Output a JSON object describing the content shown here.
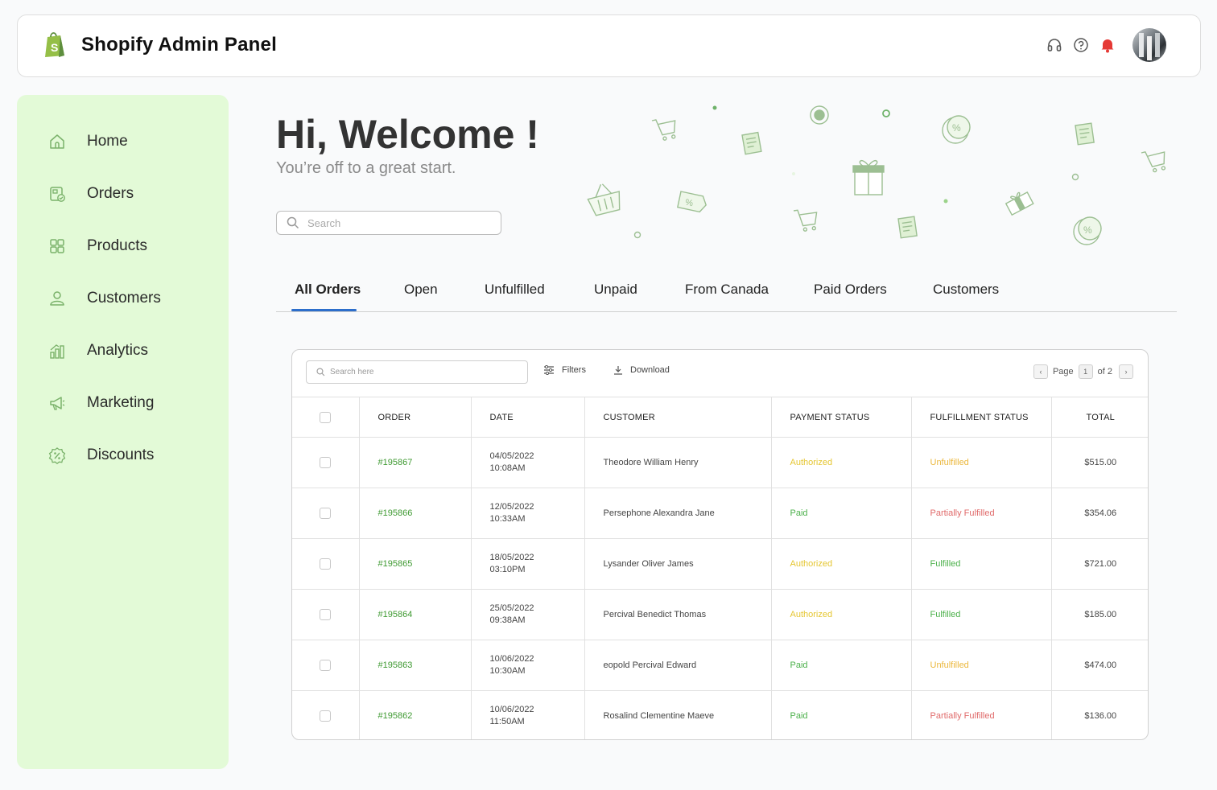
{
  "header": {
    "title": "Shopify Admin Panel",
    "icons": [
      "headset-icon",
      "help-icon",
      "bell-icon"
    ],
    "accent": "#95bf47",
    "bell_color": "#e53935"
  },
  "sidebar": {
    "background": "#e3fad7",
    "items": [
      {
        "label": "Home",
        "icon": "home-icon"
      },
      {
        "label": "Orders",
        "icon": "orders-icon"
      },
      {
        "label": "Products",
        "icon": "products-icon"
      },
      {
        "label": "Customers",
        "icon": "customers-icon"
      },
      {
        "label": "Analytics",
        "icon": "analytics-icon"
      },
      {
        "label": "Marketing",
        "icon": "megaphone-icon"
      },
      {
        "label": "Discounts",
        "icon": "discount-icon"
      }
    ]
  },
  "welcome": {
    "title": "Hi, Welcome !",
    "subtitle": "You’re off to a great start.",
    "search_placeholder": "Search"
  },
  "tabs": [
    "All Orders",
    "Open",
    "Unfulfilled",
    "Unpaid",
    "From Canada",
    "Paid Orders",
    "Customers"
  ],
  "active_tab": "All Orders",
  "table": {
    "search_placeholder": "Search here",
    "filters_label": "Filters",
    "download_label": "Download",
    "pager": {
      "label": "Page",
      "current": "1",
      "of": "of 2"
    },
    "columns": [
      "ORDER",
      "DATE",
      "CUSTOMER",
      "PAYMENT STATUS",
      "FULFILLMENT STATUS",
      "TOTAL"
    ],
    "rows": [
      {
        "order": "#195867",
        "date": "04/05/2022",
        "time": "10:08AM",
        "customer": "Theodore William Henry",
        "payment": "Authorized",
        "fulfillment": "Unfulfilled",
        "total": "$515.00"
      },
      {
        "order": "#195866",
        "date": "12/05/2022",
        "time": "10:33AM",
        "customer": "Persephone Alexandra Jane",
        "payment": "Paid",
        "fulfillment": "Partially Fulfilled",
        "total": "$354.06"
      },
      {
        "order": "#195865",
        "date": "18/05/2022",
        "time": "03:10PM",
        "customer": "Lysander Oliver James",
        "payment": "Authorized",
        "fulfillment": "Fulfilled",
        "total": "$721.00"
      },
      {
        "order": "#195864",
        "date": "25/05/2022",
        "time": "09:38AM",
        "customer": "Percival Benedict Thomas",
        "payment": "Authorized",
        "fulfillment": "Fulfilled",
        "total": "$185.00"
      },
      {
        "order": "#195863",
        "date": "10/06/2022",
        "time": "10:30AM",
        "customer": "eopold Percival Edward",
        "payment": "Paid",
        "fulfillment": "Unfulfilled",
        "total": "$474.00"
      },
      {
        "order": "#195862",
        "date": "10/06/2022",
        "time": "11:50AM",
        "customer": "Rosalind Clementine Maeve",
        "payment": "Paid",
        "fulfillment": "Partially Fulfilled",
        "total": "$136.00"
      }
    ]
  }
}
